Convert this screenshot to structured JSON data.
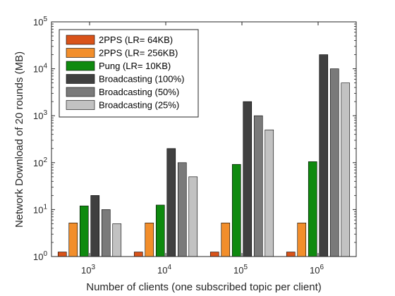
{
  "chart_data": {
    "type": "bar",
    "title": "",
    "xlabel": "Number of clients (one subscribed topic per client)",
    "ylabel": "Network Download of 20 rounds (MB)",
    "yscale": "log",
    "ylim": [
      1,
      100000
    ],
    "y_ticks": [
      {
        "base": "10",
        "exp": "0"
      },
      {
        "base": "10",
        "exp": "1"
      },
      {
        "base": "10",
        "exp": "2"
      },
      {
        "base": "10",
        "exp": "3"
      },
      {
        "base": "10",
        "exp": "4"
      },
      {
        "base": "10",
        "exp": "5"
      }
    ],
    "categories": [
      {
        "base": "10",
        "exp": "3"
      },
      {
        "base": "10",
        "exp": "4"
      },
      {
        "base": "10",
        "exp": "5"
      },
      {
        "base": "10",
        "exp": "6"
      }
    ],
    "legend_position": "top-left",
    "series": [
      {
        "name": "2PPS (LR= 64KB)",
        "color": "#d95319",
        "values": [
          1.25,
          1.25,
          1.25,
          1.25
        ]
      },
      {
        "name": "2PPS (LR= 256KB)",
        "color": "#f28e2b",
        "values": [
          5.2,
          5.2,
          5.2,
          5.2
        ]
      },
      {
        "name": "Pung (LR= 10KB)",
        "color": "#0f8a0f",
        "values": [
          12,
          12.5,
          92,
          105
        ]
      },
      {
        "name": "Broadcasting (100%)",
        "color": "#404040",
        "values": [
          20,
          200,
          2000,
          20000
        ]
      },
      {
        "name": "Broadcasting (50%)",
        "color": "#7a7a7a",
        "values": [
          10,
          100,
          1000,
          10000
        ]
      },
      {
        "name": "Broadcasting (25%)",
        "color": "#c2c2c2",
        "values": [
          5,
          50,
          500,
          5000
        ]
      }
    ]
  }
}
